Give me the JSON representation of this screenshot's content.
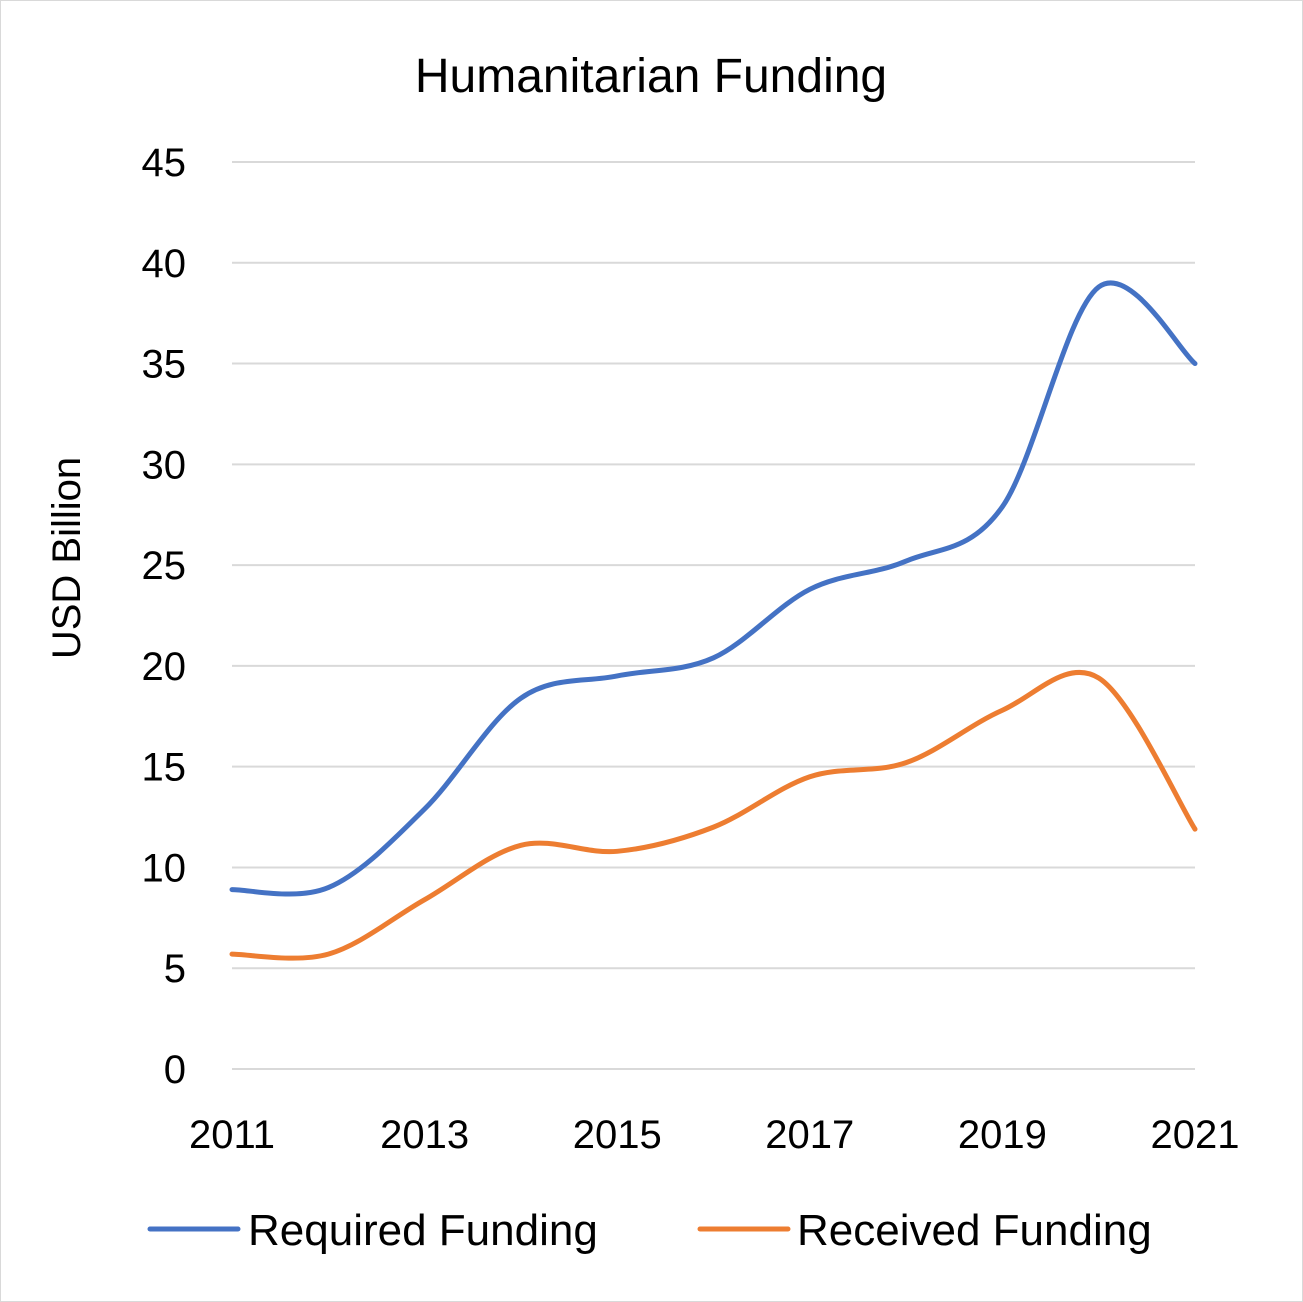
{
  "chart_data": {
    "type": "line",
    "title": "Humanitarian Funding",
    "xlabel": "",
    "ylabel": "USD Billion",
    "x": [
      2011,
      2012,
      2013,
      2014,
      2015,
      2016,
      2017,
      2018,
      2019,
      2020,
      2021
    ],
    "x_tick_labels": [
      "2011",
      "2013",
      "2015",
      "2017",
      "2019",
      "2021"
    ],
    "y_tick_labels": [
      "0",
      "5",
      "10",
      "15",
      "20",
      "25",
      "30",
      "35",
      "40",
      "45"
    ],
    "ylim": [
      0,
      45
    ],
    "xlim": [
      2011,
      2021
    ],
    "smooth": true,
    "grid": true,
    "legend_position": "bottom",
    "series": [
      {
        "name": "Required Funding",
        "color": "#4472C4",
        "values": [
          8.9,
          9.0,
          12.9,
          18.4,
          19.5,
          20.4,
          23.8,
          25.2,
          27.9,
          38.8,
          35.0
        ]
      },
      {
        "name": "Received Funding",
        "color": "#ED7D31",
        "values": [
          5.7,
          5.7,
          8.4,
          11.1,
          10.8,
          12.0,
          14.5,
          15.2,
          17.8,
          19.4,
          11.9
        ]
      }
    ]
  }
}
